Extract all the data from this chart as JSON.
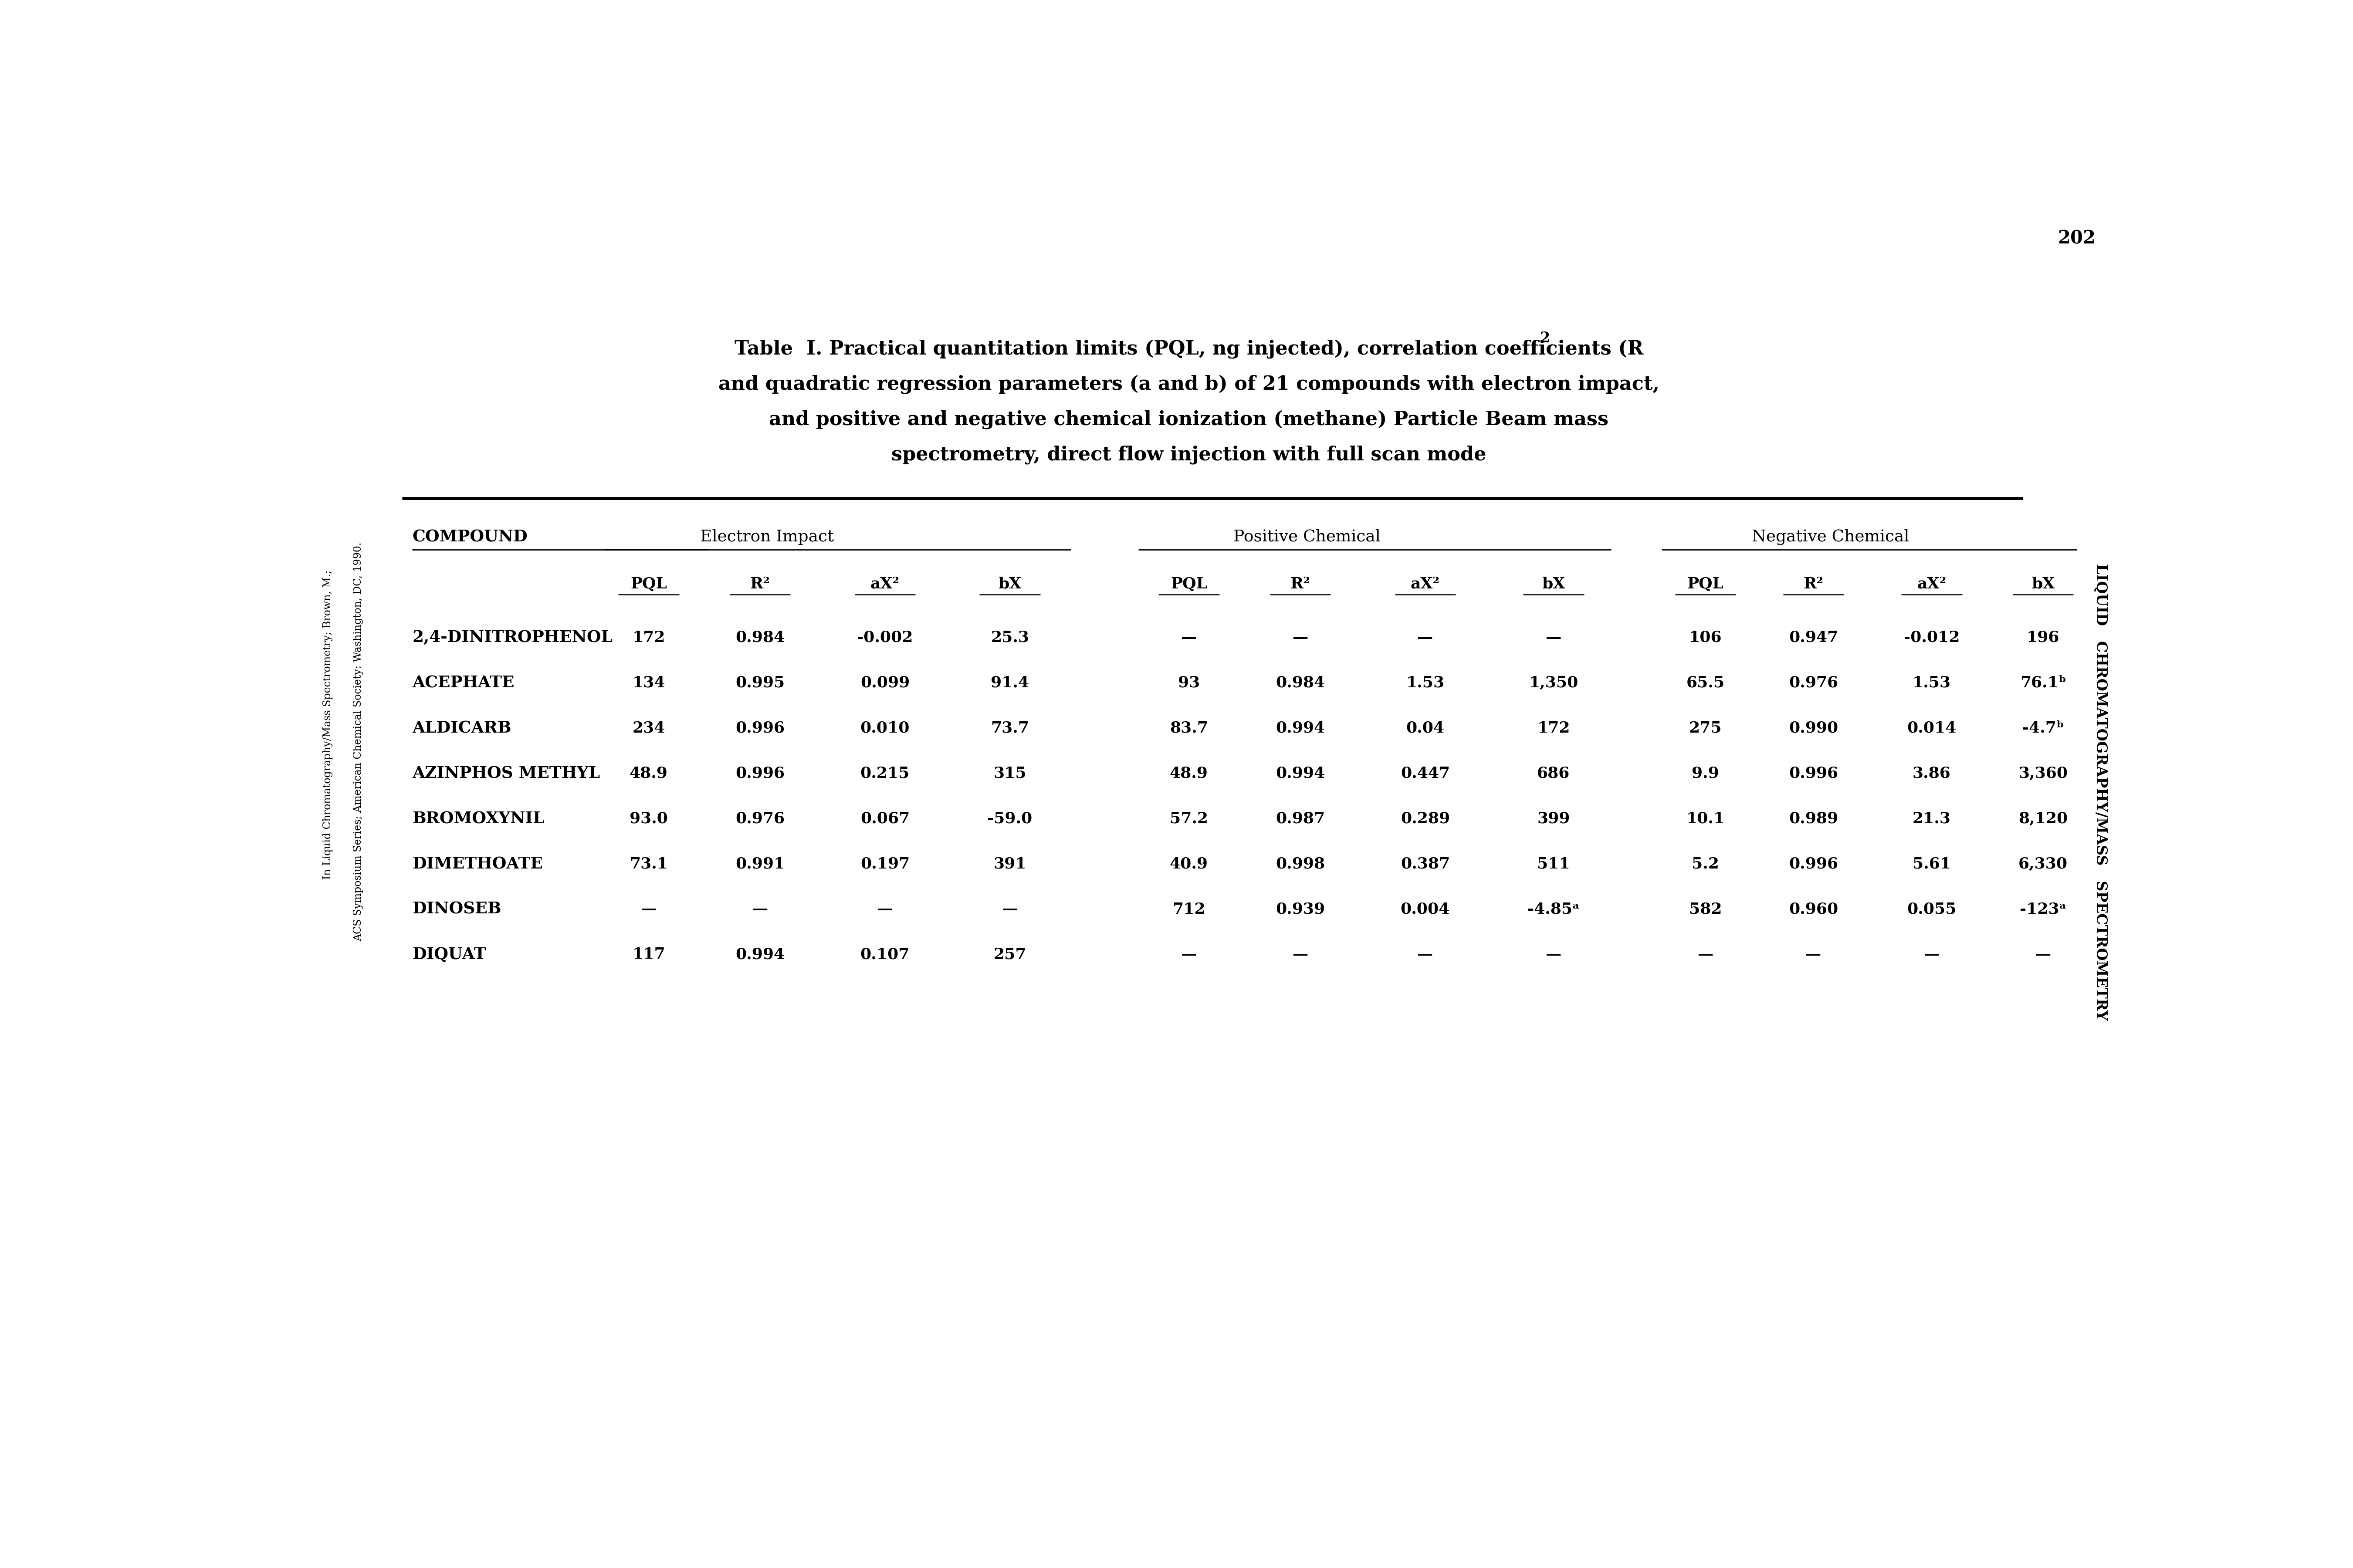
{
  "title_line1": "Table  I. Practical quantitation limits (PQL, ng injected), correlation coefficients (R",
  "title_line2": "and quadratic regression parameters (a and b) of 21 compounds with electron impact,",
  "title_line3": "and positive and negative chemical ionization (methane) Particle Beam mass",
  "title_line4": "spectrometry, direct flow injection with full scan mode",
  "page_number": "202",
  "right_side_text": "LIQUID   CHROMATOGRAPHY/MASS   SPECTROMETRY",
  "left_side_text1": "In Liquid Chromatography/Mass Spectrometry; Brown, M.;",
  "left_side_text2": "ACS Symposium Series; American Chemical Society: Washington, DC, 1990.",
  "compounds": [
    "2,4-DINITROPHENOL",
    "ACEPHATE",
    "ALDICARB",
    "AZINPHOS METHYL",
    "BROMOXYNIL",
    "DIMETHOATE",
    "DINOSEB",
    "DIQUAT"
  ],
  "ei_data": [
    [
      "172",
      "0.984",
      "-0.002",
      "25.3"
    ],
    [
      "134",
      "0.995",
      "0.099",
      "91.4"
    ],
    [
      "234",
      "0.996",
      "0.010",
      "73.7"
    ],
    [
      "48.9",
      "0.996",
      "0.215",
      "315"
    ],
    [
      "93.0",
      "0.976",
      "0.067",
      "-59.0"
    ],
    [
      "73.1",
      "0.991",
      "0.197",
      "391"
    ],
    [
      "—",
      "—",
      "—",
      "—"
    ],
    [
      "117",
      "0.994",
      "0.107",
      "257"
    ]
  ],
  "pc_data": [
    [
      "—",
      "—",
      "—",
      "—"
    ],
    [
      "93",
      "0.984",
      "1.53",
      "1,350"
    ],
    [
      "83.7",
      "0.994",
      "0.04",
      "172"
    ],
    [
      "48.9",
      "0.994",
      "0.447",
      "686"
    ],
    [
      "57.2",
      "0.987",
      "0.289",
      "399"
    ],
    [
      "40.9",
      "0.998",
      "0.387",
      "511"
    ],
    [
      "712",
      "0.939",
      "0.004",
      "-4.85ᵃ"
    ],
    [
      "—",
      "—",
      "—",
      "—"
    ]
  ],
  "nc_data": [
    [
      "106",
      "0.947",
      "-0.012",
      "196"
    ],
    [
      "65.5",
      "0.976",
      "1.53",
      "76.1ᵇ"
    ],
    [
      "275",
      "0.990",
      "0.014",
      "-4.7ᵇ"
    ],
    [
      "9.9",
      "0.996",
      "3.86",
      "3,360"
    ],
    [
      "10.1",
      "0.989",
      "21.3",
      "8,120"
    ],
    [
      "5.2",
      "0.996",
      "5.61",
      "6,330"
    ],
    [
      "582",
      "0.960",
      "0.055",
      "-123ᵃ"
    ],
    [
      "—",
      "—",
      "—",
      "—"
    ]
  ],
  "bg_color": "#ffffff",
  "text_color": "#000000"
}
